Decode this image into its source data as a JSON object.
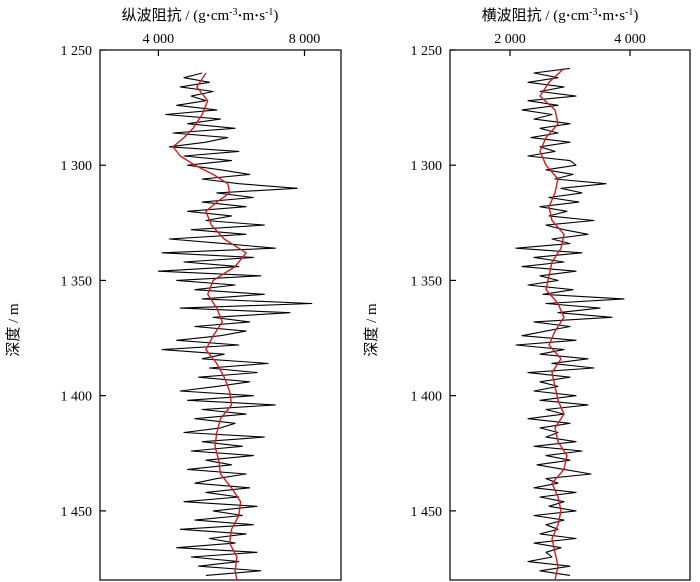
{
  "chart_data": [
    {
      "type": "line",
      "title": "纵波阻抗 / (g·cm⁻³·m·s⁻¹)",
      "title_parts": {
        "main": "纵波阻抗 / (g",
        "dot1": "·",
        "mid1": "cm",
        "sup1": "-3",
        "dot2": "·",
        "mid2": "m",
        "dot3": "·",
        "mid3": "s",
        "sup2": "-1",
        "end": ")"
      },
      "xlabel_position": "top",
      "ylabel": "深度 / m",
      "y_reversed": true,
      "ylim": [
        1250,
        1480
      ],
      "xlim": [
        2400,
        9000
      ],
      "x_ticks": [
        4000,
        8000
      ],
      "x_tick_labels": [
        "4 000",
        "8 000"
      ],
      "y_ticks": [
        1250,
        1300,
        1350,
        1400,
        1450
      ],
      "y_tick_labels": [
        "1 250",
        "1 300",
        "1 350",
        "1 400",
        "1 450"
      ],
      "series": [
        {
          "color": "#000000",
          "depth": [
            1260,
            1262,
            1264,
            1266,
            1268,
            1270,
            1272,
            1274,
            1276,
            1278,
            1280,
            1282,
            1284,
            1286,
            1288,
            1290,
            1292,
            1294,
            1296,
            1298,
            1300,
            1302,
            1304,
            1306,
            1308,
            1310,
            1312,
            1314,
            1316,
            1318,
            1320,
            1322,
            1324,
            1326,
            1328,
            1330,
            1332,
            1334,
            1336,
            1338,
            1340,
            1342,
            1344,
            1346,
            1348,
            1350,
            1352,
            1354,
            1356,
            1358,
            1360,
            1362,
            1364,
            1366,
            1368,
            1370,
            1372,
            1374,
            1376,
            1378,
            1380,
            1382,
            1384,
            1386,
            1388,
            1390,
            1392,
            1394,
            1396,
            1398,
            1400,
            1402,
            1404,
            1406,
            1408,
            1410,
            1412,
            1414,
            1416,
            1418,
            1420,
            1422,
            1424,
            1426,
            1428,
            1430,
            1432,
            1434,
            1436,
            1438,
            1440,
            1442,
            1444,
            1446,
            1448,
            1450,
            1452,
            1454,
            1456,
            1458,
            1460,
            1462,
            1464,
            1466,
            1468,
            1470,
            1472,
            1474,
            1476,
            1478
          ],
          "values": [
            5200,
            4700,
            5400,
            4600,
            5500,
            4900,
            5300,
            4500,
            5600,
            4200,
            5700,
            4800,
            6100,
            4400,
            5900,
            5300,
            4300,
            6200,
            4700,
            6000,
            4800,
            5700,
            6500,
            5200,
            6200,
            7800,
            5600,
            6600,
            5200,
            6400,
            4800,
            6000,
            5300,
            6900,
            4900,
            6400,
            4300,
            5800,
            7200,
            4100,
            6600,
            4700,
            6200,
            4000,
            6800,
            4500,
            6100,
            5000,
            6900,
            5200,
            8200,
            4600,
            7600,
            5500,
            6500,
            5000,
            6400,
            5700,
            4500,
            6200,
            4100,
            5800,
            5200,
            7000,
            5400,
            6700,
            5100,
            6500,
            5600,
            4600,
            6600,
            4800,
            7200,
            5200,
            6400,
            5000,
            6100,
            5700,
            4700,
            6900,
            5200,
            6300,
            4900,
            6600,
            5300,
            6000,
            4800,
            6400,
            5600,
            5000,
            6500,
            5300,
            6200,
            4700,
            6700,
            5500,
            6300,
            5000,
            6600,
            4600,
            6400,
            5400,
            6100,
            4500,
            6700,
            4900,
            6200,
            5100,
            6800,
            5300
          ]
        },
        {
          "color": "#d7191c",
          "depth": [
            1260,
            1266,
            1272,
            1278,
            1284,
            1288,
            1292,
            1296,
            1300,
            1304,
            1308,
            1312,
            1316,
            1320,
            1326,
            1332,
            1338,
            1344,
            1350,
            1356,
            1362,
            1368,
            1374,
            1380,
            1386,
            1392,
            1398,
            1404,
            1410,
            1416,
            1422,
            1428,
            1434,
            1440,
            1446,
            1452,
            1458,
            1464,
            1470,
            1476,
            1480
          ],
          "values": [
            5300,
            5050,
            5350,
            5200,
            4950,
            4700,
            4400,
            4600,
            5000,
            5500,
            5900,
            5950,
            5600,
            5300,
            5450,
            5800,
            6400,
            6100,
            5500,
            5350,
            5600,
            5750,
            5500,
            5300,
            5600,
            5800,
            5950,
            6000,
            5700,
            5600,
            5550,
            5650,
            5700,
            6000,
            6250,
            6200,
            6000,
            5950,
            6150,
            6100,
            6150
          ]
        }
      ]
    },
    {
      "type": "line",
      "title": "横波阻抗 / (g·cm⁻³·m·s⁻¹)",
      "title_parts": {
        "main": "横波阻抗 / (g",
        "dot1": "·",
        "mid1": "cm",
        "sup1": "-3",
        "dot2": "·",
        "mid2": "m",
        "dot3": "·",
        "mid3": "s",
        "sup2": "-1",
        "end": ")"
      },
      "xlabel_position": "top",
      "ylabel": "深度 / m",
      "y_reversed": true,
      "ylim": [
        1250,
        1480
      ],
      "xlim": [
        1000,
        5000
      ],
      "x_ticks": [
        2000,
        4000
      ],
      "x_tick_labels": [
        "2 000",
        "4 000"
      ],
      "y_ticks": [
        1250,
        1300,
        1350,
        1400,
        1450
      ],
      "y_tick_labels": [
        "1 250",
        "1 300",
        "1 350",
        "1 400",
        "1 450"
      ],
      "series": [
        {
          "color": "#000000",
          "depth": [
            1258,
            1260,
            1262,
            1264,
            1266,
            1268,
            1270,
            1272,
            1274,
            1276,
            1278,
            1280,
            1282,
            1284,
            1286,
            1288,
            1290,
            1292,
            1294,
            1296,
            1298,
            1300,
            1302,
            1304,
            1306,
            1308,
            1310,
            1312,
            1314,
            1316,
            1318,
            1320,
            1322,
            1324,
            1326,
            1328,
            1330,
            1332,
            1334,
            1336,
            1338,
            1340,
            1342,
            1344,
            1346,
            1348,
            1350,
            1352,
            1354,
            1356,
            1358,
            1360,
            1362,
            1364,
            1366,
            1368,
            1370,
            1372,
            1374,
            1376,
            1378,
            1380,
            1382,
            1384,
            1386,
            1388,
            1390,
            1392,
            1394,
            1396,
            1398,
            1400,
            1402,
            1404,
            1406,
            1408,
            1410,
            1412,
            1414,
            1416,
            1418,
            1420,
            1422,
            1424,
            1426,
            1428,
            1430,
            1432,
            1434,
            1436,
            1438,
            1440,
            1442,
            1444,
            1446,
            1448,
            1450,
            1452,
            1454,
            1456,
            1458,
            1460,
            1462,
            1464,
            1466,
            1468,
            1470,
            1472,
            1474,
            1476,
            1478
          ],
          "values": [
            3000,
            2400,
            2800,
            2300,
            2900,
            2500,
            3100,
            2300,
            2800,
            2200,
            2700,
            2400,
            3000,
            2500,
            2800,
            2350,
            3000,
            2500,
            2750,
            2300,
            3000,
            3100,
            2600,
            3050,
            2750,
            3600,
            2850,
            3200,
            2650,
            3150,
            2500,
            2950,
            2650,
            3400,
            2600,
            2900,
            3300,
            2700,
            3000,
            2100,
            3200,
            2400,
            2900,
            2200,
            3100,
            2500,
            2800,
            2300,
            3050,
            2550,
            3900,
            2600,
            3500,
            2800,
            3700,
            2400,
            3000,
            2600,
            2200,
            3100,
            2100,
            2900,
            2500,
            3300,
            2700,
            3400,
            2300,
            3000,
            2500,
            2800,
            2400,
            3100,
            2500,
            3300,
            2600,
            2900,
            2300,
            3000,
            2500,
            2800,
            2600,
            3100,
            2400,
            3200,
            2600,
            3000,
            2450,
            2900,
            3350,
            2600,
            2800,
            2400,
            3100,
            2500,
            2900,
            2650,
            3100,
            2400,
            2900,
            2600,
            2800,
            2500,
            3100,
            2400,
            2850,
            2600,
            2700,
            2300,
            3000,
            2500,
            3000
          ]
        },
        {
          "color": "#d7191c",
          "depth": [
            1258,
            1264,
            1270,
            1276,
            1282,
            1288,
            1294,
            1300,
            1306,
            1312,
            1318,
            1324,
            1330,
            1336,
            1342,
            1348,
            1354,
            1360,
            1366,
            1372,
            1378,
            1384,
            1390,
            1396,
            1402,
            1408,
            1414,
            1420,
            1426,
            1432,
            1438,
            1444,
            1450,
            1456,
            1462,
            1468,
            1474,
            1480
          ],
          "values": [
            2900,
            2650,
            2500,
            2750,
            2800,
            2600,
            2500,
            2600,
            2800,
            2750,
            2650,
            2700,
            2900,
            2850,
            2700,
            2650,
            2600,
            2800,
            2900,
            2750,
            2650,
            2850,
            2700,
            2750,
            2800,
            2900,
            2750,
            2800,
            2950,
            2900,
            2700,
            2800,
            2850,
            2800,
            2700,
            2750,
            2800,
            2750
          ]
        }
      ]
    }
  ]
}
